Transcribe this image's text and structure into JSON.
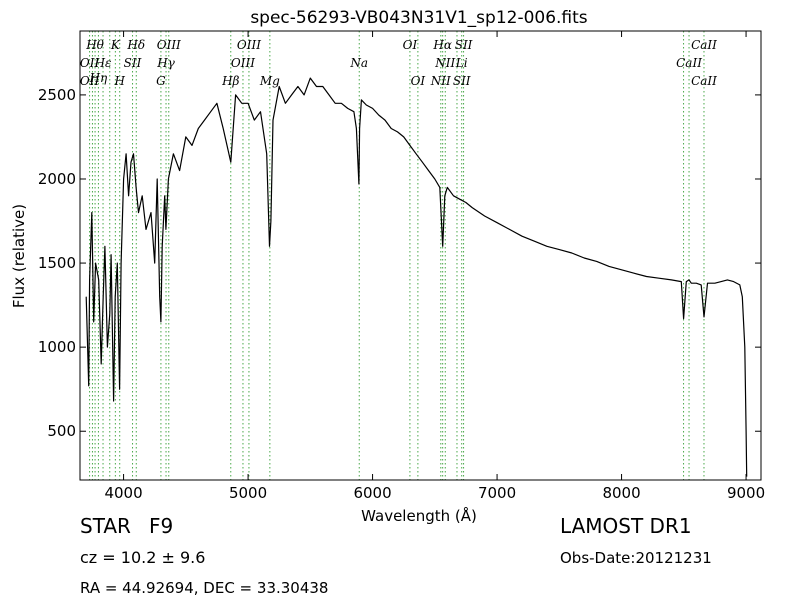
{
  "chart_data": {
    "type": "line",
    "title": "spec-56293-VB043N31V1_sp12-006.fits",
    "xlabel": "Wavelength (Å)",
    "ylabel": "Flux (relative)",
    "xlim": [
      3650,
      9120
    ],
    "ylim": [
      210,
      2880
    ],
    "x_ticks": [
      4000,
      5000,
      6000,
      7000,
      8000,
      9000
    ],
    "x_tick_labels": [
      "4000",
      "5000",
      "6000",
      "7000",
      "8000",
      "9000"
    ],
    "y_ticks": [
      500,
      1000,
      1500,
      2000,
      2500
    ],
    "y_tick_labels": [
      "500",
      "1000",
      "1500",
      "2000",
      "2500"
    ],
    "grid": false,
    "series": [
      {
        "line_color": "#000000",
        "x": [
          3700,
          3720,
          3727,
          3745,
          3760,
          3775,
          3800,
          3820,
          3836,
          3850,
          3870,
          3889,
          3900,
          3920,
          3933,
          3950,
          3968,
          3980,
          4000,
          4020,
          4040,
          4060,
          4080,
          4101,
          4120,
          4150,
          4180,
          4200,
          4220,
          4250,
          4270,
          4290,
          4300,
          4310,
          4330,
          4340,
          4360,
          4400,
          4450,
          4500,
          4550,
          4600,
          4650,
          4700,
          4750,
          4800,
          4861,
          4900,
          4950,
          5000,
          5050,
          5100,
          5150,
          5172,
          5183,
          5200,
          5250,
          5300,
          5350,
          5400,
          5450,
          5500,
          5550,
          5600,
          5650,
          5700,
          5750,
          5800,
          5850,
          5870,
          5890,
          5896,
          5910,
          5950,
          6000,
          6050,
          6100,
          6150,
          6200,
          6250,
          6300,
          6350,
          6400,
          6450,
          6500,
          6540,
          6563,
          6580,
          6600,
          6650,
          6700,
          6750,
          6800,
          6900,
          7000,
          7100,
          7200,
          7300,
          7400,
          7500,
          7600,
          7700,
          7800,
          7900,
          8000,
          8100,
          8200,
          8300,
          8400,
          8480,
          8498,
          8520,
          8542,
          8560,
          8600,
          8640,
          8662,
          8690,
          8750,
          8800,
          8850,
          8900,
          8950,
          8970,
          8990,
          9000,
          9005
        ],
        "y": [
          1300,
          770,
          1400,
          1800,
          1150,
          1500,
          1400,
          900,
          1300,
          1600,
          1000,
          1200,
          1550,
          680,
          1300,
          1500,
          750,
          1500,
          2000,
          2150,
          1900,
          2100,
          2150,
          1950,
          1800,
          1900,
          1700,
          1750,
          1800,
          1500,
          2000,
          1300,
          1150,
          1600,
          1900,
          1700,
          2000,
          2150,
          2050,
          2250,
          2200,
          2300,
          2350,
          2400,
          2450,
          2300,
          2100,
          2500,
          2450,
          2450,
          2350,
          2400,
          2150,
          1600,
          1750,
          2350,
          2550,
          2450,
          2500,
          2550,
          2500,
          2600,
          2550,
          2550,
          2500,
          2450,
          2450,
          2420,
          2400,
          2300,
          1970,
          2300,
          2470,
          2440,
          2420,
          2380,
          2350,
          2300,
          2280,
          2250,
          2200,
          2150,
          2100,
          2050,
          2000,
          1950,
          1600,
          1900,
          1950,
          1900,
          1880,
          1860,
          1830,
          1780,
          1740,
          1700,
          1660,
          1630,
          1600,
          1580,
          1560,
          1530,
          1510,
          1480,
          1460,
          1440,
          1420,
          1410,
          1400,
          1390,
          1170,
          1390,
          1400,
          1380,
          1380,
          1370,
          1180,
          1380,
          1380,
          1390,
          1400,
          1390,
          1370,
          1300,
          1000,
          500,
          230
        ]
      }
    ],
    "line_markers": {
      "color": "#4aa84a",
      "positions": [
        3727,
        3750,
        3771,
        3798,
        3835,
        3889,
        3934,
        3969,
        4072,
        4102,
        4300,
        4341,
        4363,
        4861,
        4959,
        5007,
        5175,
        5893,
        6300,
        6364,
        6548,
        6563,
        6584,
        6678,
        6716,
        6731,
        8498,
        8542,
        8662
      ]
    },
    "line_labels": [
      {
        "text": "Hθ",
        "x": 3771,
        "row": 1
      },
      {
        "text": "K",
        "x": 3934,
        "row": 1
      },
      {
        "text": "Hδ",
        "x": 4102,
        "row": 1
      },
      {
        "text": "OIII",
        "x": 4363,
        "row": 1
      },
      {
        "text": "OIII",
        "x": 5007,
        "row": 1
      },
      {
        "text": "OI",
        "x": 6300,
        "row": 1
      },
      {
        "text": "Hα",
        "x": 6563,
        "row": 1
      },
      {
        "text": "SII",
        "x": 6731,
        "row": 1
      },
      {
        "text": "CaII",
        "x": 8662,
        "row": 1
      },
      {
        "text": "OII",
        "x": 3727,
        "row": 2
      },
      {
        "text": "Hε",
        "x": 3835,
        "row": 2
      },
      {
        "text": "SII",
        "x": 4072,
        "row": 2
      },
      {
        "text": "Hγ",
        "x": 4341,
        "row": 2
      },
      {
        "text": "OIII",
        "x": 4959,
        "row": 2
      },
      {
        "text": "Na",
        "x": 5893,
        "row": 2
      },
      {
        "text": "NII",
        "x": 6584,
        "row": 2
      },
      {
        "text": "Li",
        "x": 6716,
        "row": 2
      },
      {
        "text": "CaII",
        "x": 8542,
        "row": 2
      },
      {
        "text": "Hη",
        "x": 3798,
        "row": 2.5
      },
      {
        "text": "OII",
        "x": 3727,
        "row": 3
      },
      {
        "text": "H",
        "x": 3969,
        "row": 3
      },
      {
        "text": "G",
        "x": 4300,
        "row": 3
      },
      {
        "text": "Hβ",
        "x": 4861,
        "row": 3
      },
      {
        "text": "Mg",
        "x": 5175,
        "row": 3
      },
      {
        "text": "OI",
        "x": 6364,
        "row": 3
      },
      {
        "text": "NII",
        "x": 6548,
        "row": 3
      },
      {
        "text": "SII",
        "x": 6716,
        "row": 3
      },
      {
        "text": "CaII",
        "x": 8662,
        "row": 3
      }
    ]
  },
  "info": {
    "object_class": "STAR",
    "subclass": "F9",
    "redshift": "cz = 10.2  ± 9.6",
    "coords": "RA = 44.92694, DEC = 33.30438",
    "survey": "LAMOST DR1",
    "obs_date": "Obs-Date:20121231"
  }
}
